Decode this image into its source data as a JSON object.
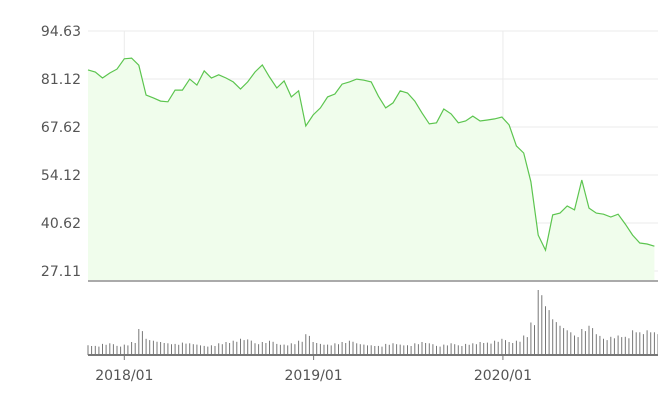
{
  "chart_data": {
    "type": "area",
    "title": "",
    "xlabel": "",
    "ylabel": "",
    "ylim": [
      27.11,
      94.63
    ],
    "y_ticks": [
      "94.63",
      "81.12",
      "67.62",
      "54.12",
      "40.62",
      "27.11"
    ],
    "x_ticks": [
      {
        "label": "2018/01",
        "date": "2018-01-01"
      },
      {
        "label": "2019/01",
        "date": "2019-01-01"
      },
      {
        "label": "2020/01",
        "date": "2020-01-01"
      }
    ],
    "xlim": [
      "2017-10-23",
      "2020-10-26"
    ],
    "grid": true,
    "colors": {
      "line": "#5cc54f",
      "fill": "#f0fdec",
      "grid": "#ebebeb",
      "axis": "#aaaaaa",
      "volume": "#777777",
      "text": "#555555"
    },
    "dates": [
      "2017-10-23",
      "2017-11-06",
      "2017-11-20",
      "2017-12-04",
      "2017-12-18",
      "2018-01-01",
      "2018-01-15",
      "2018-01-29",
      "2018-02-12",
      "2018-02-26",
      "2018-03-12",
      "2018-03-26",
      "2018-04-09",
      "2018-04-23",
      "2018-05-07",
      "2018-05-21",
      "2018-06-04",
      "2018-06-18",
      "2018-07-02",
      "2018-07-16",
      "2018-07-30",
      "2018-08-13",
      "2018-08-27",
      "2018-09-10",
      "2018-09-24",
      "2018-10-08",
      "2018-10-22",
      "2018-11-05",
      "2018-11-19",
      "2018-12-03",
      "2018-12-17",
      "2018-12-31",
      "2019-01-14",
      "2019-01-28",
      "2019-02-11",
      "2019-02-25",
      "2019-03-11",
      "2019-03-25",
      "2019-04-08",
      "2019-04-22",
      "2019-05-06",
      "2019-05-20",
      "2019-06-03",
      "2019-06-17",
      "2019-07-01",
      "2019-07-15",
      "2019-07-29",
      "2019-08-12",
      "2019-08-26",
      "2019-09-09",
      "2019-09-23",
      "2019-10-07",
      "2019-10-21",
      "2019-11-04",
      "2019-11-18",
      "2019-12-02",
      "2019-12-16",
      "2019-12-30",
      "2020-01-13",
      "2020-01-27",
      "2020-02-10",
      "2020-02-24",
      "2020-03-09",
      "2020-03-23",
      "2020-04-06",
      "2020-04-20",
      "2020-05-04",
      "2020-05-18",
      "2020-06-01",
      "2020-06-15",
      "2020-06-29",
      "2020-07-13",
      "2020-07-27",
      "2020-08-10",
      "2020-08-24",
      "2020-09-07",
      "2020-09-21",
      "2020-10-05",
      "2020-10-19"
    ],
    "price": [
      83.7,
      83.1,
      81.4,
      82.8,
      83.9,
      86.8,
      87.0,
      85.0,
      76.6,
      75.8,
      74.9,
      74.7,
      78.0,
      78.0,
      81.1,
      79.4,
      83.4,
      81.4,
      82.3,
      81.4,
      80.3,
      78.3,
      80.3,
      83.1,
      85.1,
      81.7,
      78.6,
      80.6,
      76.1,
      77.8,
      67.9,
      71.0,
      73.0,
      76.1,
      76.9,
      79.7,
      80.3,
      81.1,
      80.8,
      80.3,
      76.3,
      73.0,
      74.4,
      77.8,
      77.2,
      74.9,
      71.6,
      68.5,
      68.8,
      72.7,
      71.3,
      68.8,
      69.3,
      70.7,
      69.3,
      69.6,
      69.9,
      70.4,
      68.2,
      62.3,
      60.3,
      52.2,
      37.2,
      33.0,
      42.9,
      43.4,
      45.4,
      44.3,
      52.7,
      44.8,
      43.4,
      43.1,
      42.3,
      43.1,
      40.3,
      37.2,
      35.0,
      34.7,
      34.1
    ],
    "volume_relative": [
      15,
      14,
      17,
      18,
      14,
      16,
      20,
      40,
      25,
      22,
      20,
      18,
      17,
      19,
      18,
      16,
      14,
      15,
      18,
      20,
      22,
      25,
      24,
      18,
      20,
      22,
      17,
      16,
      18,
      22,
      32,
      20,
      17,
      16,
      18,
      20,
      22,
      18,
      16,
      15,
      14,
      17,
      18,
      16,
      15,
      18,
      20,
      18,
      14,
      16,
      18,
      15,
      17,
      18,
      20,
      19,
      22,
      25,
      20,
      22,
      30,
      50,
      100,
      75,
      55,
      45,
      38,
      30,
      40,
      45,
      32,
      25,
      28,
      30,
      28,
      38,
      35,
      38,
      35
    ]
  }
}
